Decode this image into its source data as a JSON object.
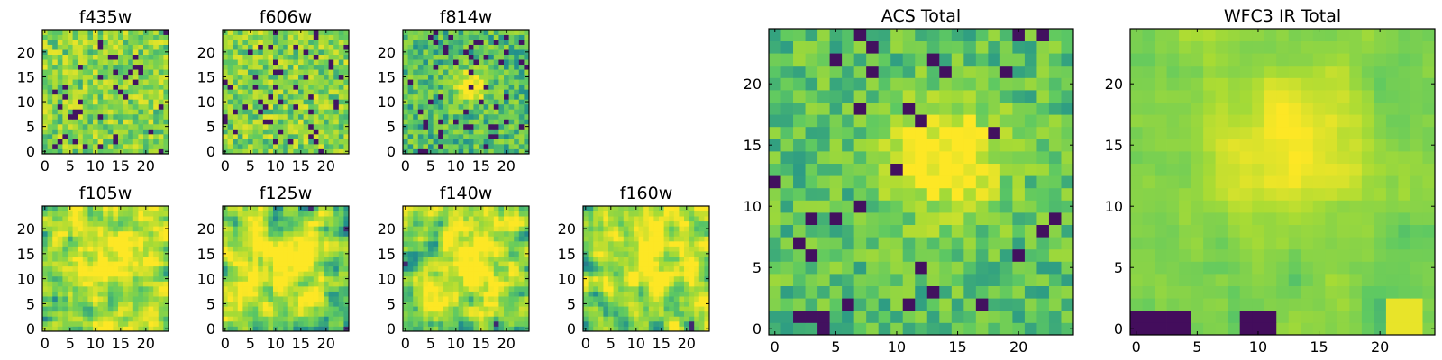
{
  "colormap": [
    "#440154",
    "#3b528b",
    "#21918c",
    "#5ec962",
    "#a8db34",
    "#fde725"
  ],
  "chart_data": [
    {
      "type": "heatmap",
      "title": "f435w",
      "size": 25,
      "xticks": [
        0,
        5,
        10,
        15,
        20
      ],
      "yticks": [
        0,
        5,
        10,
        15,
        20
      ],
      "ylim": [
        0,
        24
      ],
      "xlim": [
        0,
        24
      ],
      "note": "pixel image, viridis colormap"
    },
    {
      "type": "heatmap",
      "title": "f606w",
      "size": 25,
      "xticks": [
        0,
        5,
        10,
        15,
        20
      ],
      "yticks": [
        0,
        5,
        10,
        15,
        20
      ],
      "ylim": [
        0,
        24
      ],
      "xlim": [
        0,
        24
      ]
    },
    {
      "type": "heatmap",
      "title": "f814w",
      "size": 25,
      "xticks": [
        0,
        5,
        10,
        15,
        20
      ],
      "yticks": [
        0,
        5,
        10,
        15,
        20
      ],
      "ylim": [
        0,
        24
      ],
      "xlim": [
        0,
        24
      ]
    },
    {
      "type": "heatmap",
      "title": "f105w",
      "size": 25,
      "xticks": [
        0,
        5,
        10,
        15,
        20
      ],
      "yticks": [
        0,
        5,
        10,
        15,
        20
      ],
      "ylim": [
        0,
        24
      ],
      "xlim": [
        0,
        24
      ]
    },
    {
      "type": "heatmap",
      "title": "f125w",
      "size": 25,
      "xticks": [
        0,
        5,
        10,
        15,
        20
      ],
      "yticks": [
        0,
        5,
        10,
        15,
        20
      ],
      "ylim": [
        0,
        24
      ],
      "xlim": [
        0,
        24
      ]
    },
    {
      "type": "heatmap",
      "title": "f140w",
      "size": 25,
      "xticks": [
        0,
        5,
        10,
        15,
        20
      ],
      "yticks": [
        0,
        5,
        10,
        15,
        20
      ],
      "ylim": [
        0,
        24
      ],
      "xlim": [
        0,
        24
      ]
    },
    {
      "type": "heatmap",
      "title": "f160w",
      "size": 25,
      "xticks": [
        0,
        5,
        10,
        15,
        20
      ],
      "yticks": [
        0,
        5,
        10,
        15,
        20
      ],
      "ylim": [
        0,
        24
      ],
      "xlim": [
        0,
        24
      ]
    },
    {
      "type": "heatmap",
      "title": "ACS Total",
      "size": 25,
      "xticks": [
        0,
        5,
        10,
        15,
        20
      ],
      "yticks": [
        0,
        5,
        10,
        15,
        20
      ],
      "ylim": [
        0,
        24
      ],
      "xlim": [
        0,
        24
      ]
    },
    {
      "type": "heatmap",
      "title": "WFC3 IR Total",
      "size": 25,
      "xticks": [
        0,
        5,
        10,
        15,
        20
      ],
      "yticks": [
        0,
        5,
        10,
        15,
        20
      ],
      "ylim": [
        0,
        24
      ],
      "xlim": [
        0,
        24
      ]
    }
  ]
}
